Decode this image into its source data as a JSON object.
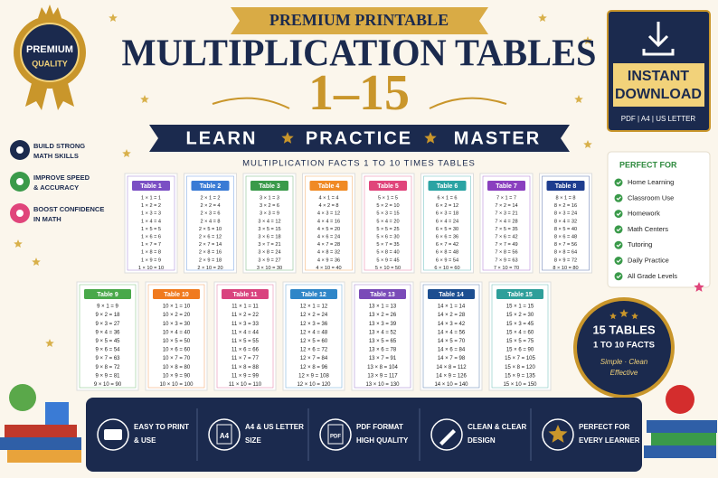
{
  "badge": {
    "top": "PREMIUM",
    "bottom": "QUALITY"
  },
  "header": {
    "ribbon": "PREMIUM PRINTABLE",
    "title": "MULTIPLICATION TABLES",
    "range": "1–15",
    "banner": [
      "LEARN",
      "PRACTICE",
      "MASTER"
    ],
    "subtitle": "MULTIPLICATION FACTS 1 TO 10 TIMES TABLES"
  },
  "benefits": [
    {
      "color": "#1b2a4e",
      "lines": [
        "BUILD STRONG",
        "MATH SKILLS"
      ]
    },
    {
      "color": "#3a9a4a",
      "lines": [
        "IMPROVE SPEED",
        "& ACCURACY"
      ]
    },
    {
      "color": "#e0457b",
      "lines": [
        "BOOST CONFIDENCE",
        "IN MATH"
      ]
    }
  ],
  "download": {
    "line1": "INSTANT",
    "line2": "DOWNLOAD",
    "formats": "PDF | A4 | US LETTER"
  },
  "perfect_for": {
    "title": "PERFECT FOR",
    "items": [
      "Home Learning",
      "Classroom Use",
      "Homework",
      "Math Centers",
      "Tutoring",
      "Daily Practice",
      "All Grade Levels"
    ]
  },
  "tables": [
    {
      "title": "Table 1",
      "color": "#7b4fc4",
      "rows": [
        "1 × 1 = 1",
        "1 × 2 = 2",
        "1 × 3 = 3",
        "1 × 4 = 4",
        "1 × 5 = 5",
        "1 × 6 = 6",
        "1 × 7 = 7",
        "1 × 8 = 8",
        "1 × 9 = 9",
        "1 × 10 = 10"
      ]
    },
    {
      "title": "Table 2",
      "color": "#3a7bd5",
      "rows": [
        "2 × 1 = 2",
        "2 × 2 = 4",
        "2 × 3 = 6",
        "2 × 4 = 8",
        "2 × 5 = 10",
        "2 × 6 = 12",
        "2 × 7 = 14",
        "2 × 8 = 16",
        "2 × 9 = 18",
        "2 × 10 = 20"
      ]
    },
    {
      "title": "Table 3",
      "color": "#3a9a4a",
      "rows": [
        "3 × 1 = 3",
        "3 × 2 = 6",
        "3 × 3 = 9",
        "3 × 4 = 12",
        "3 × 5 = 15",
        "3 × 6 = 18",
        "3 × 7 = 21",
        "3 × 8 = 24",
        "3 × 9 = 27",
        "3 × 10 = 30"
      ]
    },
    {
      "title": "Table 4",
      "color": "#f08a24",
      "rows": [
        "4 × 1 = 4",
        "4 × 2 = 8",
        "4 × 3 = 12",
        "4 × 4 = 16",
        "4 × 5 = 20",
        "4 × 6 = 24",
        "4 × 7 = 28",
        "4 × 8 = 32",
        "4 × 9 = 36",
        "4 × 10 = 40"
      ]
    },
    {
      "title": "Table 5",
      "color": "#e0457b",
      "rows": [
        "5 × 1 = 5",
        "5 × 2 = 10",
        "5 × 3 = 15",
        "5 × 4 = 20",
        "5 × 5 = 25",
        "5 × 6 = 30",
        "5 × 7 = 35",
        "5 × 8 = 40",
        "5 × 9 = 45",
        "5 × 10 = 50"
      ]
    },
    {
      "title": "Table 6",
      "color": "#2aa3a3",
      "rows": [
        "6 × 1 = 6",
        "6 × 2 = 12",
        "6 × 3 = 18",
        "6 × 4 = 24",
        "6 × 5 = 30",
        "6 × 6 = 36",
        "6 × 7 = 42",
        "6 × 8 = 48",
        "6 × 9 = 54",
        "6 × 10 = 60"
      ]
    },
    {
      "title": "Table 7",
      "color": "#8a3fbf",
      "rows": [
        "7 × 1 = 7",
        "7 × 2 = 14",
        "7 × 3 = 21",
        "7 × 4 = 28",
        "7 × 5 = 35",
        "7 × 6 = 42",
        "7 × 7 = 49",
        "7 × 8 = 56",
        "7 × 9 = 63",
        "7 × 10 = 70"
      ]
    },
    {
      "title": "Table 8",
      "color": "#1e3d8f",
      "rows": [
        "8 × 1 = 8",
        "8 × 2 = 16",
        "8 × 3 = 24",
        "8 × 4 = 32",
        "8 × 5 = 40",
        "8 × 6 = 48",
        "8 × 7 = 56",
        "8 × 8 = 64",
        "8 × 9 = 72",
        "8 × 10 = 80"
      ]
    },
    {
      "title": "Table 9",
      "color": "#49a84a",
      "rows": [
        "9 × 1 = 9",
        "9 × 2 = 18",
        "9 × 3 = 27",
        "9 × 4 = 36",
        "9 × 5 = 45",
        "9 × 6 = 54",
        "9 × 7 = 63",
        "9 × 8 = 72",
        "9 × 9 = 81",
        "9 × 10 = 90"
      ]
    },
    {
      "title": "Table 10",
      "color": "#f07a1e",
      "rows": [
        "10 × 1 = 10",
        "10 × 2 = 20",
        "10 × 3 = 30",
        "10 × 4 = 40",
        "10 × 5 = 50",
        "10 × 6 = 60",
        "10 × 7 = 70",
        "10 × 8 = 80",
        "10 × 9 = 90",
        "10 × 10 = 100"
      ]
    },
    {
      "title": "Table 11",
      "color": "#d9437f",
      "rows": [
        "11 × 1 = 11",
        "11 × 2 = 22",
        "11 × 3 = 33",
        "11 × 4 = 44",
        "11 × 5 = 55",
        "11 × 6 = 66",
        "11 × 7 = 77",
        "11 × 8 = 88",
        "11 × 9 = 99",
        "11 × 10 = 110"
      ]
    },
    {
      "title": "Table 12",
      "color": "#2f86c8",
      "rows": [
        "12 × 1 = 12",
        "12 × 2 = 24",
        "12 × 3 = 36",
        "12 × 4 = 48",
        "12 × 5 = 60",
        "12 × 6 = 72",
        "12 × 7 = 84",
        "12 × 8 = 96",
        "12 × 9 = 108",
        "12 × 10 = 120"
      ]
    },
    {
      "title": "Table 13",
      "color": "#7a4bb8",
      "rows": [
        "13 × 1 = 13",
        "13 × 2 = 26",
        "13 × 3 = 39",
        "13 × 4 = 52",
        "13 × 5 = 65",
        "13 × 6 = 78",
        "13 × 7 = 91",
        "13 × 8 = 104",
        "13 × 9 = 117",
        "13 × 10 = 130"
      ]
    },
    {
      "title": "Table 14",
      "color": "#1d4f91",
      "rows": [
        "14 × 1 = 14",
        "14 × 2 = 28",
        "14 × 3 = 42",
        "14 × 4 = 56",
        "14 × 5 = 70",
        "14 × 6 = 84",
        "14 × 7 = 98",
        "14 × 8 = 112",
        "14 × 9 = 126",
        "14 × 10 = 140"
      ]
    },
    {
      "title": "Table 15",
      "color": "#2e9f9a",
      "rows": [
        "15 × 1 = 15",
        "15 × 2 = 30",
        "15 × 3 = 45",
        "15 × 4 = 60",
        "15 × 5 = 75",
        "15 × 6 = 90",
        "15 × 7 = 105",
        "15 × 8 = 120",
        "15 × 9 = 135",
        "15 × 10 = 150"
      ]
    }
  ],
  "seal": {
    "line1": "15 TABLES",
    "line2": "1 TO 10 FACTS",
    "line3": "Simple · Clean",
    "line4": "Effective"
  },
  "features": [
    {
      "lines": [
        "EASY TO PRINT",
        "& USE"
      ]
    },
    {
      "icon": "A4",
      "lines": [
        "A4 & US LETTER",
        "SIZE"
      ]
    },
    {
      "icon": "PDF",
      "lines": [
        "PDF FORMAT",
        "HIGH QUALITY"
      ]
    },
    {
      "lines": [
        "CLEAN & CLEAR",
        "DESIGN"
      ]
    },
    {
      "lines": [
        "PERFECT FOR",
        "EVERY LEARNER"
      ]
    }
  ]
}
